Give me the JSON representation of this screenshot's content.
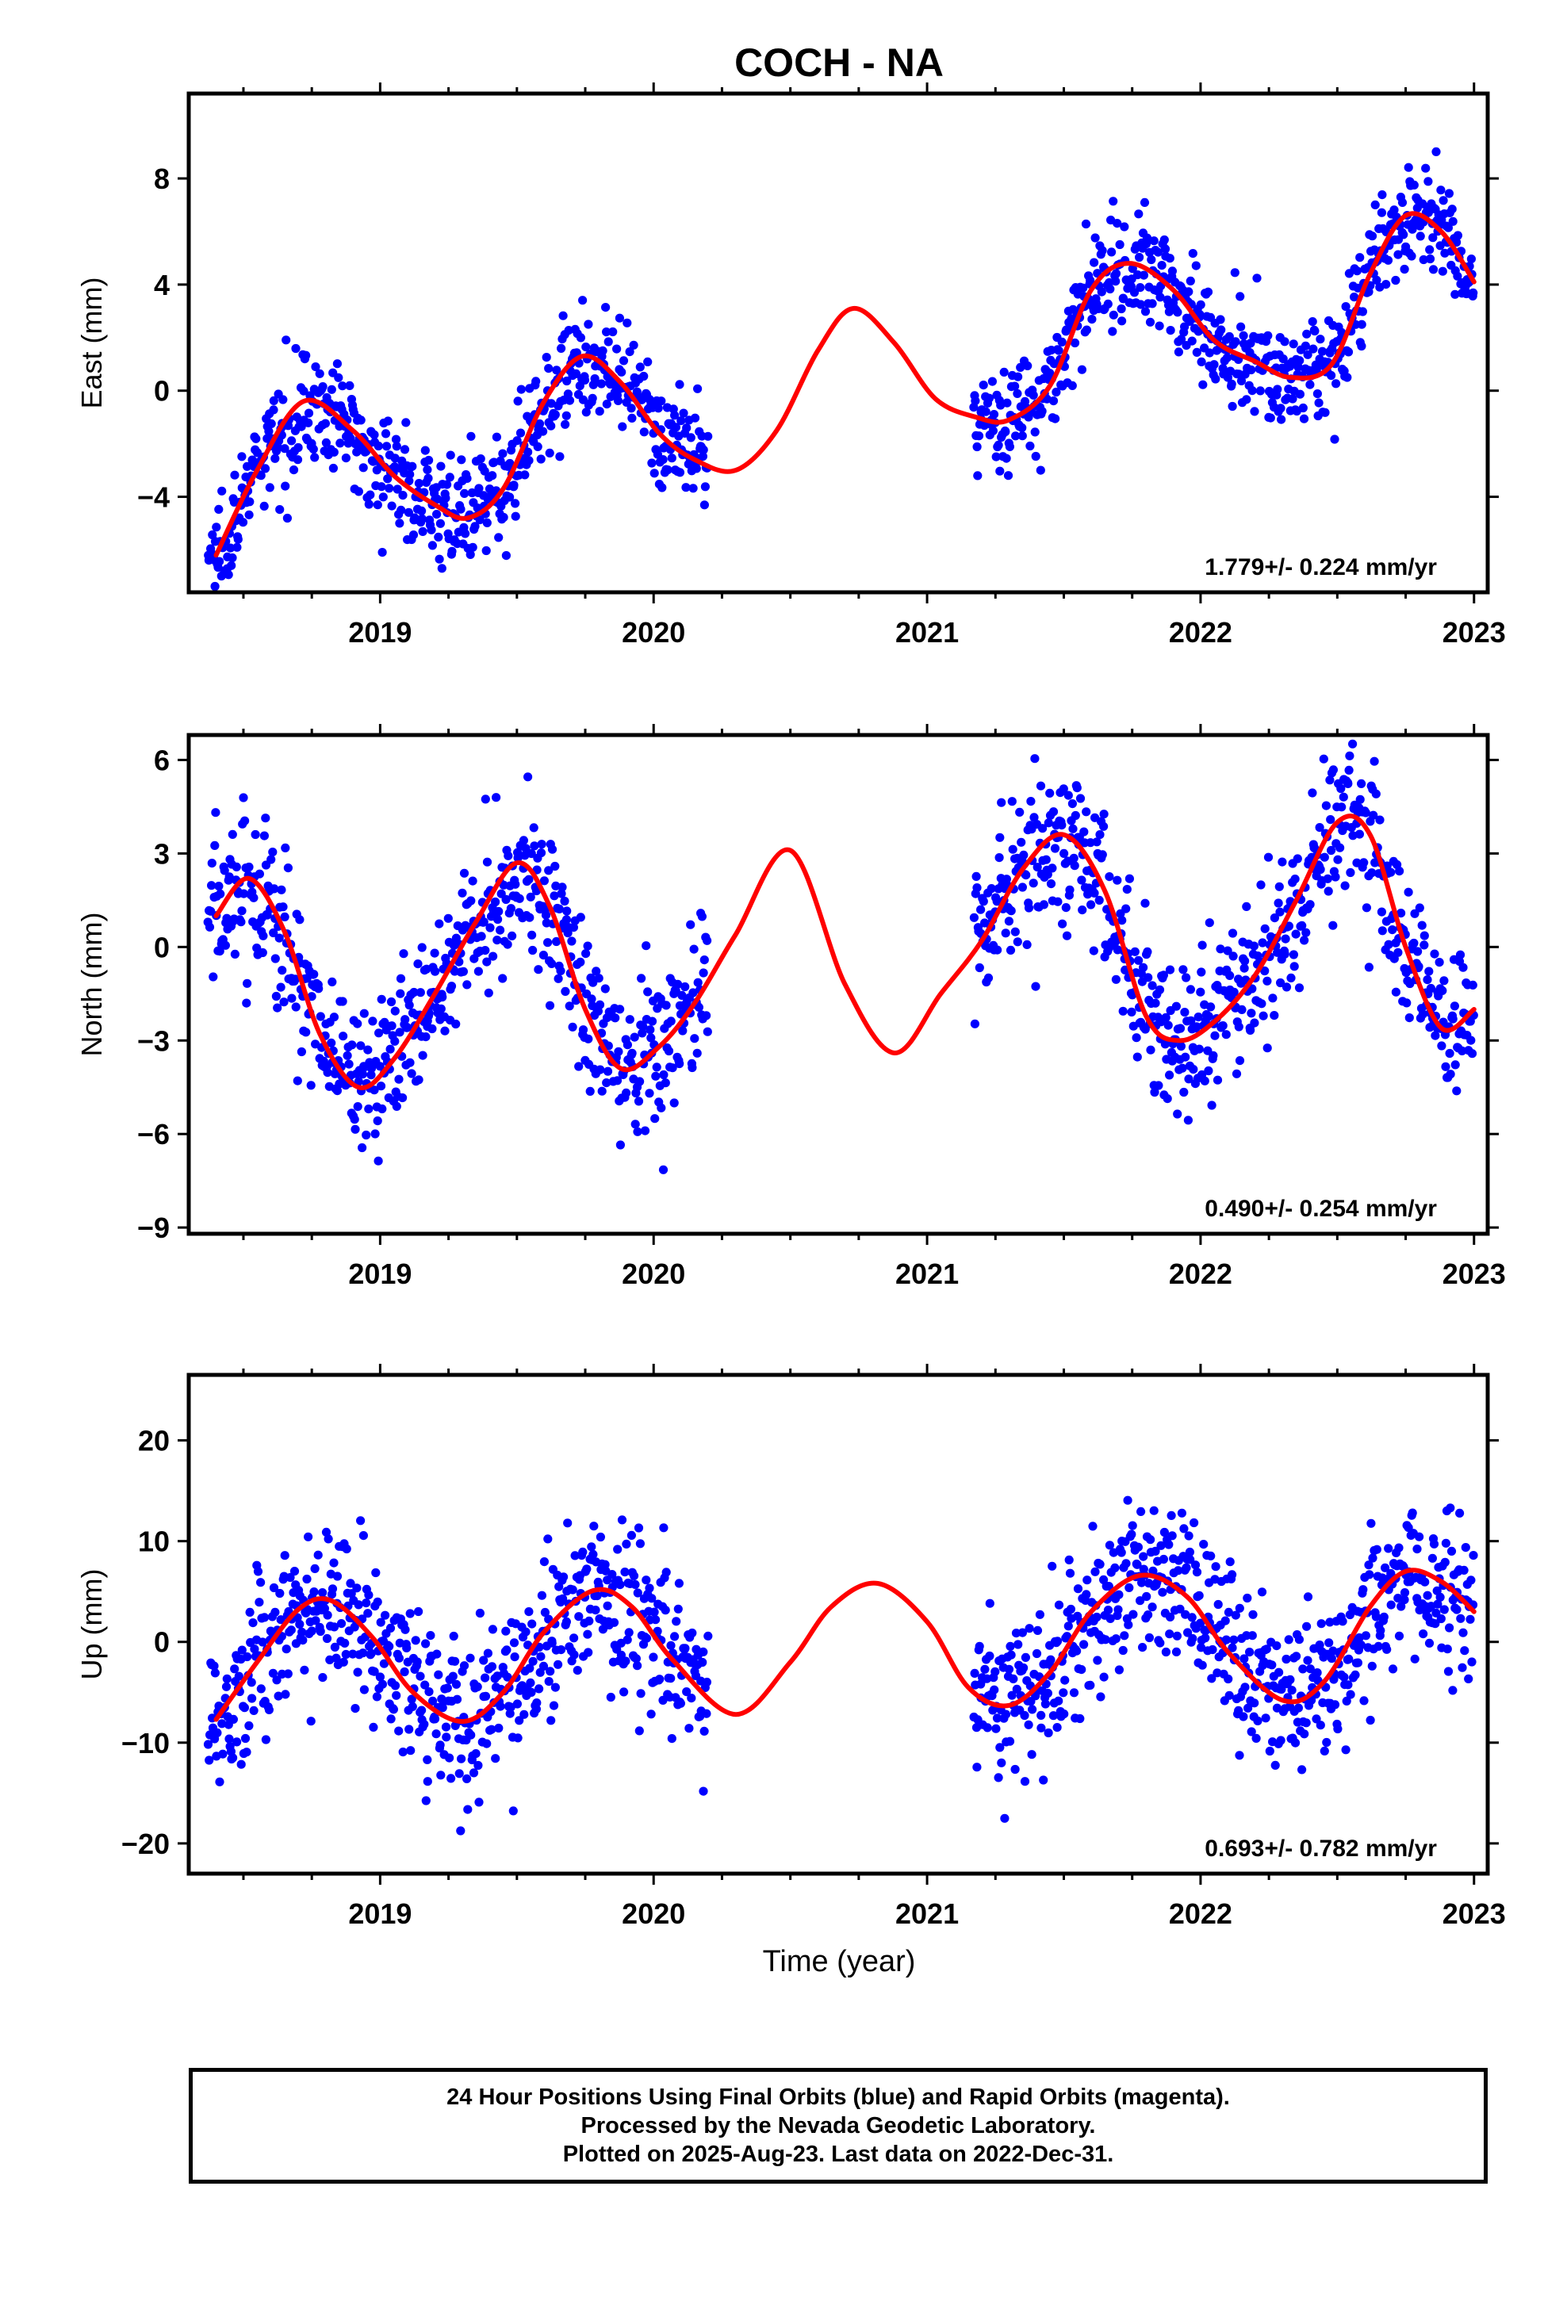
{
  "title": "COCH - NA",
  "x_axis_label": "Time (year)",
  "footer": {
    "line1": "24 Hour Positions Using Final Orbits (blue) and Rapid Orbits (magenta).",
    "line2": "Processed by the Nevada Geodetic Laboratory.",
    "line3": "Plotted on 2025-Aug-23. Last data on 2022-Dec-31."
  },
  "colors": {
    "final_orbits": "#0000ff",
    "fit_curve": "#ff0000",
    "axes": "#000000"
  },
  "chart_data": [
    {
      "type": "scatter",
      "component": "East",
      "ylabel": "East (mm)",
      "xlim": [
        2018.3,
        2023.05
      ],
      "ylim": [
        -7.6,
        11.2
      ],
      "x_ticks": [
        2019,
        2020,
        2021,
        2022,
        2023
      ],
      "y_ticks": [
        -4,
        0,
        4,
        8
      ],
      "rate_annotation": "1.779+/- 0.224 mm/yr",
      "data_gap": [
        2020.2,
        2021.17
      ],
      "series": [
        {
          "name": "Final Orbits",
          "style": "points",
          "segments": [
            [
              2018.37,
              2020.2
            ],
            [
              2021.17,
              2023.0
            ]
          ],
          "scatter_sd": 1.0
        },
        {
          "name": "Fit",
          "style": "line",
          "x": [
            2018.4,
            2018.55,
            2018.72,
            2018.9,
            2019.05,
            2019.2,
            2019.32,
            2019.45,
            2019.6,
            2019.74,
            2019.88,
            2020.02,
            2020.15,
            2020.3,
            2020.45,
            2020.6,
            2020.73,
            2020.88,
            2021.03,
            2021.18,
            2021.3,
            2021.45,
            2021.6,
            2021.74,
            2021.9,
            2022.05,
            2022.2,
            2022.33,
            2022.48,
            2022.62,
            2022.75,
            2022.88,
            2023.0
          ],
          "y": [
            -6.2,
            -3.0,
            -0.4,
            -1.5,
            -3.2,
            -4.3,
            -4.8,
            -3.7,
            -0.4,
            1.3,
            0.3,
            -1.6,
            -2.6,
            -3.0,
            -1.5,
            1.5,
            3.1,
            1.8,
            -0.3,
            -1.0,
            -1.1,
            0.2,
            3.8,
            4.8,
            3.8,
            1.9,
            1.1,
            0.5,
            1.0,
            4.4,
            6.6,
            6.0,
            4.1
          ]
        }
      ]
    },
    {
      "type": "scatter",
      "component": "North",
      "ylabel": "North (mm)",
      "xlim": [
        2018.3,
        2023.05
      ],
      "ylim": [
        -9.2,
        6.8
      ],
      "x_ticks": [
        2019,
        2020,
        2021,
        2022,
        2023
      ],
      "y_ticks": [
        -9,
        -6,
        -3,
        0,
        3,
        6
      ],
      "rate_annotation": "0.490+/- 0.254 mm/yr",
      "data_gap": [
        2020.2,
        2021.17
      ],
      "series": [
        {
          "name": "Final Orbits",
          "style": "points",
          "segments": [
            [
              2018.37,
              2020.2
            ],
            [
              2021.17,
              2023.0
            ]
          ],
          "scatter_sd": 1.3
        },
        {
          "name": "Fit",
          "style": "line",
          "x": [
            2018.4,
            2018.52,
            2018.65,
            2018.78,
            2018.92,
            2019.05,
            2019.2,
            2019.35,
            2019.5,
            2019.62,
            2019.75,
            2019.88,
            2020.02,
            2020.15,
            2020.3,
            2020.5,
            2020.7,
            2020.88,
            2021.05,
            2021.2,
            2021.35,
            2021.5,
            2021.65,
            2021.8,
            2021.92,
            2022.05,
            2022.2,
            2022.35,
            2022.5,
            2022.62,
            2022.75,
            2022.88,
            2023.0
          ],
          "y": [
            1.0,
            2.2,
            0.5,
            -2.8,
            -4.5,
            -3.6,
            -1.5,
            0.8,
            2.7,
            1.3,
            -2.0,
            -3.9,
            -3.2,
            -1.8,
            0.4,
            3.1,
            -1.2,
            -3.4,
            -1.5,
            0.2,
            2.5,
            3.6,
            1.8,
            -2.2,
            -3.0,
            -2.4,
            -0.9,
            1.5,
            4.0,
            3.6,
            0.0,
            -2.6,
            -2.0
          ]
        }
      ]
    },
    {
      "type": "scatter",
      "component": "Up",
      "ylabel": "Up (mm)",
      "xlim": [
        2018.3,
        2023.05
      ],
      "ylim": [
        -23.0,
        26.5
      ],
      "x_ticks": [
        2019,
        2020,
        2021,
        2022,
        2023
      ],
      "y_ticks": [
        -20,
        -10,
        0,
        10,
        20
      ],
      "rate_annotation": "0.693+/- 0.782 mm/yr",
      "data_gap": [
        2020.2,
        2021.17
      ],
      "series": [
        {
          "name": "Final Orbits",
          "style": "points",
          "segments": [
            [
              2018.37,
              2020.2
            ],
            [
              2021.17,
              2023.0
            ]
          ],
          "scatter_sd": 4.0
        },
        {
          "name": "Fit",
          "style": "line",
          "x": [
            2018.4,
            2018.55,
            2018.7,
            2018.82,
            2018.97,
            2019.12,
            2019.3,
            2019.45,
            2019.6,
            2019.78,
            2019.92,
            2020.07,
            2020.3,
            2020.5,
            2020.65,
            2020.82,
            2021.0,
            2021.15,
            2021.3,
            2021.45,
            2021.6,
            2021.78,
            2021.95,
            2022.1,
            2022.3,
            2022.45,
            2022.62,
            2022.75,
            2022.88,
            2023.0
          ],
          "y": [
            -7.7,
            -2.0,
            3.2,
            4.1,
            0.5,
            -5.0,
            -7.9,
            -5.0,
            1.0,
            5.1,
            3.5,
            -1.8,
            -7.2,
            -2.0,
            3.5,
            5.8,
            2.0,
            -4.5,
            -6.3,
            -3.0,
            3.0,
            6.6,
            4.5,
            -1.0,
            -5.8,
            -4.0,
            3.5,
            7.0,
            6.0,
            3.0
          ]
        }
      ]
    }
  ]
}
